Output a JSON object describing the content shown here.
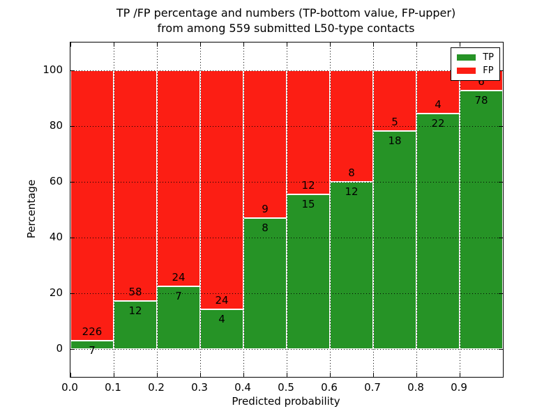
{
  "chart_data": {
    "type": "bar",
    "stacked": true,
    "normalized_to_percent": 100,
    "title_line1": "TP /FP percentage and numbers (TP-bottom value, FP-upper)",
    "title_line2": "from among 559 submitted L50-type contacts",
    "total_contacts": 559,
    "xlabel": "Predicted probability",
    "ylabel": "Percentage",
    "xlim": [
      0,
      1
    ],
    "ylim": [
      -10,
      110
    ],
    "x_tick_labels": [
      "0.0",
      "0.1",
      "0.2",
      "0.3",
      "0.4",
      "0.5",
      "0.6",
      "0.7",
      "0.8",
      "0.9"
    ],
    "y_tick_values": [
      0,
      20,
      40,
      60,
      80,
      100
    ],
    "y_tick_labels": [
      "0",
      "20",
      "40",
      "60",
      "80",
      "100"
    ],
    "grid": "dotted",
    "legend": {
      "position": "upper right",
      "entries": [
        {
          "label": "TP",
          "color": "#269326"
        },
        {
          "label": "FP",
          "color": "#fc1e14"
        }
      ]
    },
    "bins": [
      {
        "x_start": 0.0,
        "x_end": 0.1,
        "tp": 7,
        "fp": 226,
        "tp_pct": 3.0
      },
      {
        "x_start": 0.1,
        "x_end": 0.2,
        "tp": 12,
        "fp": 58,
        "tp_pct": 17.1
      },
      {
        "x_start": 0.2,
        "x_end": 0.3,
        "tp": 7,
        "fp": 24,
        "tp_pct": 22.6
      },
      {
        "x_start": 0.3,
        "x_end": 0.4,
        "tp": 4,
        "fp": 24,
        "tp_pct": 14.3
      },
      {
        "x_start": 0.4,
        "x_end": 0.5,
        "tp": 8,
        "fp": 9,
        "tp_pct": 47.1
      },
      {
        "x_start": 0.5,
        "x_end": 0.6,
        "tp": 15,
        "fp": 12,
        "tp_pct": 55.6
      },
      {
        "x_start": 0.6,
        "x_end": 0.7,
        "tp": 12,
        "fp": 8,
        "tp_pct": 60.0
      },
      {
        "x_start": 0.7,
        "x_end": 0.8,
        "tp": 18,
        "fp": 5,
        "tp_pct": 78.3
      },
      {
        "x_start": 0.8,
        "x_end": 0.9,
        "tp": 22,
        "fp": 4,
        "tp_pct": 84.6
      },
      {
        "x_start": 0.9,
        "x_end": 1.0,
        "tp": 78,
        "fp": 6,
        "tp_pct": 92.9
      }
    ],
    "colors": {
      "tp": "#269326",
      "fp": "#fc1e14",
      "bar_edge": "#ffffff",
      "grid": "#000000",
      "axis": "#000000",
      "text": "#000000",
      "background": "#ffffff"
    }
  }
}
